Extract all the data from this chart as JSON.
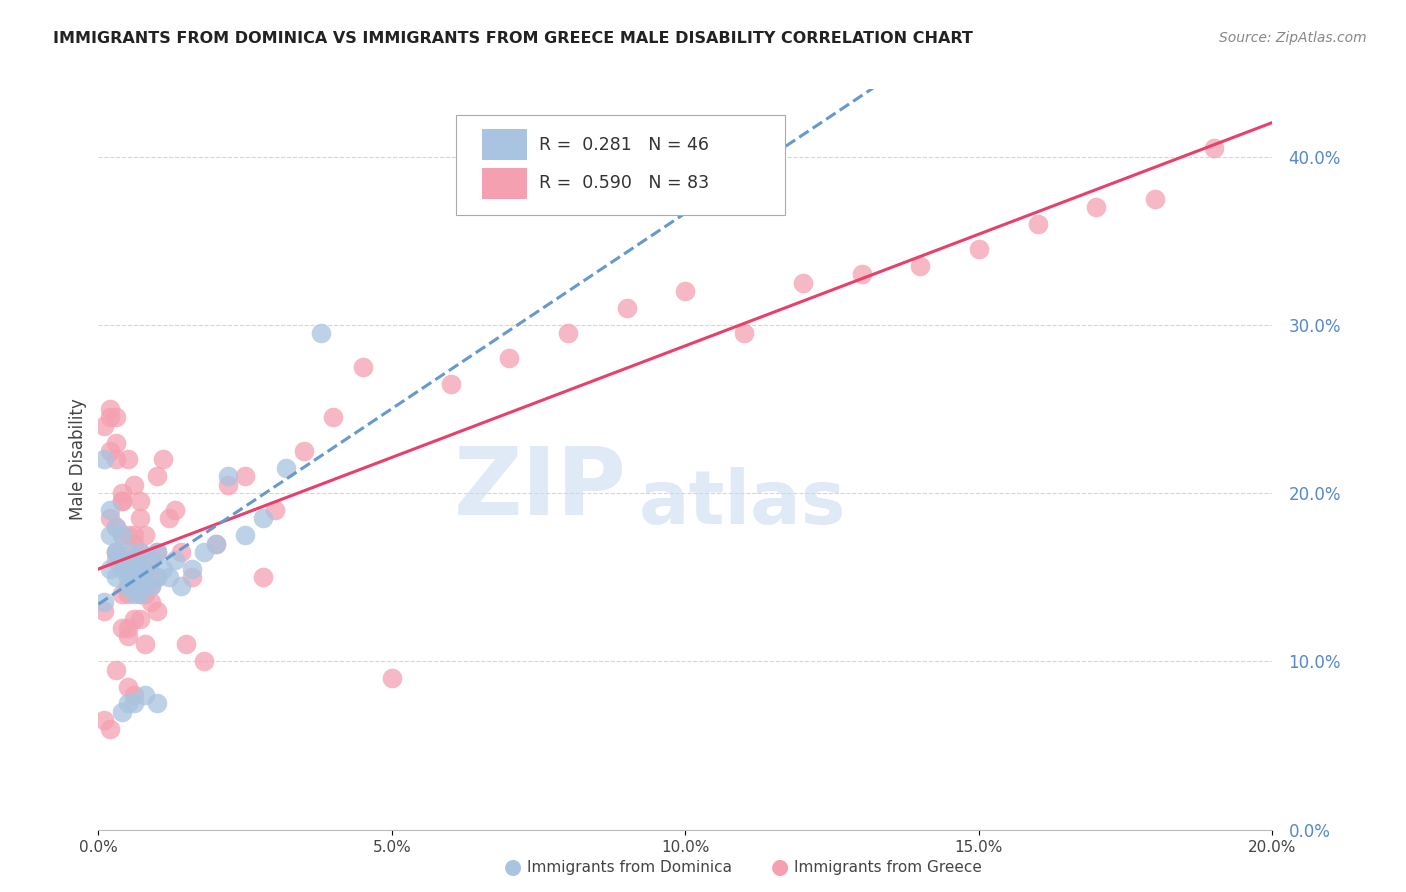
{
  "title": "IMMIGRANTS FROM DOMINICA VS IMMIGRANTS FROM GREECE MALE DISABILITY CORRELATION CHART",
  "source": "Source: ZipAtlas.com",
  "ylabel_label": "Male Disability",
  "xlim": [
    0.0,
    0.2
  ],
  "ylim": [
    0.0,
    0.44
  ],
  "ytick_vals": [
    0.0,
    0.1,
    0.2,
    0.3,
    0.4
  ],
  "xtick_vals": [
    0.0,
    0.05,
    0.1,
    0.15,
    0.2
  ],
  "grid_color": "#cccccc",
  "background_color": "#ffffff",
  "dominica_color": "#a8c4e0",
  "greece_color": "#f4a0b0",
  "dominica_R": 0.281,
  "dominica_N": 46,
  "greece_R": 0.59,
  "greece_N": 83,
  "dominica_line_color": "#6699cc",
  "greece_line_color": "#e8406a",
  "watermark_zip": "ZIP",
  "watermark_atlas": "atlas",
  "legend_label_dominica": "Immigrants from Dominica",
  "legend_label_greece": "Immigrants from Greece",
  "dominica_scatter_x": [
    0.001,
    0.001,
    0.002,
    0.002,
    0.002,
    0.003,
    0.003,
    0.003,
    0.003,
    0.004,
    0.004,
    0.004,
    0.005,
    0.005,
    0.005,
    0.005,
    0.006,
    0.006,
    0.006,
    0.007,
    0.007,
    0.007,
    0.007,
    0.008,
    0.008,
    0.009,
    0.009,
    0.01,
    0.01,
    0.011,
    0.012,
    0.013,
    0.014,
    0.016,
    0.018,
    0.02,
    0.022,
    0.025,
    0.028,
    0.032,
    0.038,
    0.004,
    0.005,
    0.006,
    0.008,
    0.01
  ],
  "dominica_scatter_y": [
    0.22,
    0.135,
    0.175,
    0.19,
    0.155,
    0.165,
    0.18,
    0.15,
    0.165,
    0.175,
    0.16,
    0.155,
    0.145,
    0.165,
    0.155,
    0.145,
    0.15,
    0.16,
    0.14,
    0.155,
    0.165,
    0.15,
    0.14,
    0.155,
    0.145,
    0.16,
    0.145,
    0.15,
    0.165,
    0.155,
    0.15,
    0.16,
    0.145,
    0.155,
    0.165,
    0.17,
    0.21,
    0.175,
    0.185,
    0.215,
    0.295,
    0.07,
    0.075,
    0.075,
    0.08,
    0.075
  ],
  "greece_scatter_x": [
    0.001,
    0.001,
    0.001,
    0.002,
    0.002,
    0.002,
    0.002,
    0.003,
    0.003,
    0.003,
    0.003,
    0.004,
    0.004,
    0.004,
    0.005,
    0.005,
    0.005,
    0.005,
    0.006,
    0.006,
    0.006,
    0.007,
    0.007,
    0.007,
    0.008,
    0.008,
    0.009,
    0.009,
    0.01,
    0.01,
    0.01,
    0.011,
    0.012,
    0.013,
    0.014,
    0.015,
    0.016,
    0.018,
    0.02,
    0.022,
    0.025,
    0.028,
    0.03,
    0.035,
    0.04,
    0.045,
    0.05,
    0.06,
    0.07,
    0.08,
    0.09,
    0.1,
    0.11,
    0.12,
    0.13,
    0.14,
    0.15,
    0.16,
    0.17,
    0.18,
    0.003,
    0.004,
    0.005,
    0.006,
    0.007,
    0.008,
    0.009,
    0.01,
    0.002,
    0.003,
    0.004,
    0.005,
    0.006,
    0.003,
    0.004,
    0.005,
    0.006,
    0.007,
    0.008,
    0.005,
    0.006,
    0.007,
    0.19
  ],
  "greece_scatter_y": [
    0.13,
    0.065,
    0.24,
    0.245,
    0.225,
    0.185,
    0.06,
    0.22,
    0.23,
    0.18,
    0.165,
    0.195,
    0.2,
    0.175,
    0.15,
    0.16,
    0.14,
    0.12,
    0.155,
    0.17,
    0.145,
    0.14,
    0.185,
    0.195,
    0.155,
    0.175,
    0.16,
    0.145,
    0.165,
    0.15,
    0.21,
    0.22,
    0.185,
    0.19,
    0.165,
    0.11,
    0.15,
    0.1,
    0.17,
    0.205,
    0.21,
    0.15,
    0.19,
    0.225,
    0.245,
    0.275,
    0.09,
    0.265,
    0.28,
    0.295,
    0.31,
    0.32,
    0.295,
    0.325,
    0.33,
    0.335,
    0.345,
    0.36,
    0.37,
    0.375,
    0.095,
    0.14,
    0.115,
    0.08,
    0.125,
    0.11,
    0.135,
    0.13,
    0.25,
    0.16,
    0.12,
    0.085,
    0.125,
    0.245,
    0.195,
    0.175,
    0.205,
    0.165,
    0.14,
    0.22,
    0.175,
    0.155,
    0.405
  ]
}
